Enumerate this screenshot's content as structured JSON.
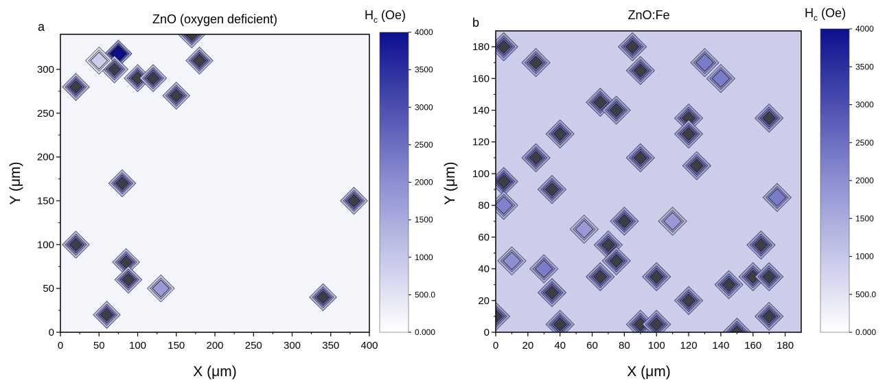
{
  "chart_data": [
    {
      "type": "heatmap",
      "panel_label": "a",
      "title": "ZnO (oxygen deficient)",
      "xlabel": "X (μm)",
      "ylabel": "Y (μm)",
      "colorbar_label": "H",
      "colorbar_sub": "c",
      "colorbar_unit": " (Oe)",
      "xlim": [
        0,
        400
      ],
      "ylim": [
        0,
        340
      ],
      "x_ticks": [
        "0",
        "50",
        "100",
        "150",
        "200",
        "250",
        "300",
        "350",
        "400"
      ],
      "y_ticks": [
        "0",
        "50",
        "100",
        "150",
        "200",
        "250",
        "300"
      ],
      "colorbar_range": [
        0,
        4000
      ],
      "colorbar_ticks": [
        "0.000",
        "500.0",
        "1000",
        "1500",
        "2000",
        "2500",
        "3000",
        "3500",
        "4000"
      ],
      "background_level": 200,
      "hot_spots": [
        {
          "x": 60,
          "y": 20,
          "hc": 2600
        },
        {
          "x": 20,
          "y": 100,
          "hc": 2600
        },
        {
          "x": 85,
          "y": 80,
          "hc": 2500
        },
        {
          "x": 88,
          "y": 60,
          "hc": 2600
        },
        {
          "x": 130,
          "y": 50,
          "hc": 1800
        },
        {
          "x": 340,
          "y": 40,
          "hc": 2600
        },
        {
          "x": 380,
          "y": 150,
          "hc": 2600
        },
        {
          "x": 80,
          "y": 170,
          "hc": 2600
        },
        {
          "x": 20,
          "y": 280,
          "hc": 2600
        },
        {
          "x": 100,
          "y": 290,
          "hc": 2600
        },
        {
          "x": 120,
          "y": 290,
          "hc": 2600
        },
        {
          "x": 150,
          "y": 270,
          "hc": 2600
        },
        {
          "x": 180,
          "y": 310,
          "hc": 2600
        },
        {
          "x": 170,
          "y": 340,
          "hc": 2600
        },
        {
          "x": 75,
          "y": 318,
          "hc": 4000
        },
        {
          "x": 70,
          "y": 300,
          "hc": 2400
        },
        {
          "x": 50,
          "y": 310,
          "hc": 900
        }
      ]
    },
    {
      "type": "heatmap",
      "panel_label": "b",
      "title": "ZnO:Fe",
      "xlabel": "X (μm)",
      "ylabel": "Y (μm)",
      "colorbar_label": "H",
      "colorbar_sub": "c",
      "colorbar_unit": " (Oe)",
      "xlim": [
        0,
        190
      ],
      "ylim": [
        0,
        190
      ],
      "x_ticks": [
        "0",
        "20",
        "40",
        "60",
        "80",
        "100",
        "120",
        "140",
        "160",
        "180"
      ],
      "y_ticks": [
        "0",
        "20",
        "40",
        "60",
        "80",
        "100",
        "120",
        "140",
        "160",
        "180"
      ],
      "colorbar_range": [
        0,
        4000
      ],
      "colorbar_ticks": [
        "0.000",
        "500.0",
        "1000",
        "1500",
        "2000",
        "2500",
        "3000",
        "3500",
        "4000"
      ],
      "background_level": 900,
      "hot_spots": [
        {
          "x": 5,
          "y": 180,
          "hc": 2600
        },
        {
          "x": 25,
          "y": 170,
          "hc": 2400
        },
        {
          "x": 90,
          "y": 165,
          "hc": 2600
        },
        {
          "x": 85,
          "y": 180,
          "hc": 2600
        },
        {
          "x": 130,
          "y": 170,
          "hc": 2300
        },
        {
          "x": 140,
          "y": 160,
          "hc": 2300
        },
        {
          "x": 65,
          "y": 145,
          "hc": 2600
        },
        {
          "x": 75,
          "y": 140,
          "hc": 2600
        },
        {
          "x": 40,
          "y": 125,
          "hc": 2600
        },
        {
          "x": 120,
          "y": 135,
          "hc": 2600
        },
        {
          "x": 120,
          "y": 125,
          "hc": 2600
        },
        {
          "x": 170,
          "y": 135,
          "hc": 2600
        },
        {
          "x": 90,
          "y": 110,
          "hc": 2600
        },
        {
          "x": 125,
          "y": 105,
          "hc": 2600
        },
        {
          "x": 25,
          "y": 110,
          "hc": 2600
        },
        {
          "x": 5,
          "y": 95,
          "hc": 2800
        },
        {
          "x": 35,
          "y": 90,
          "hc": 2600
        },
        {
          "x": 5,
          "y": 80,
          "hc": 2200
        },
        {
          "x": 80,
          "y": 70,
          "hc": 2600
        },
        {
          "x": 175,
          "y": 85,
          "hc": 2300
        },
        {
          "x": 70,
          "y": 55,
          "hc": 2600
        },
        {
          "x": 75,
          "y": 45,
          "hc": 2600
        },
        {
          "x": 30,
          "y": 40,
          "hc": 2300
        },
        {
          "x": 65,
          "y": 35,
          "hc": 2600
        },
        {
          "x": 100,
          "y": 35,
          "hc": 2600
        },
        {
          "x": 165,
          "y": 55,
          "hc": 2600
        },
        {
          "x": 160,
          "y": 35,
          "hc": 2600
        },
        {
          "x": 170,
          "y": 35,
          "hc": 2600
        },
        {
          "x": 145,
          "y": 30,
          "hc": 2600
        },
        {
          "x": 120,
          "y": 20,
          "hc": 2600
        },
        {
          "x": 35,
          "y": 25,
          "hc": 2600
        },
        {
          "x": 40,
          "y": 5,
          "hc": 2600
        },
        {
          "x": 90,
          "y": 5,
          "hc": 2600
        },
        {
          "x": 100,
          "y": 5,
          "hc": 2600
        },
        {
          "x": 170,
          "y": 10,
          "hc": 2600
        },
        {
          "x": 150,
          "y": 0,
          "hc": 2600
        },
        {
          "x": 0,
          "y": 10,
          "hc": 2600
        },
        {
          "x": 110,
          "y": 70,
          "hc": 1800
        },
        {
          "x": 55,
          "y": 65,
          "hc": 1800
        },
        {
          "x": 10,
          "y": 45,
          "hc": 2000
        }
      ]
    }
  ]
}
